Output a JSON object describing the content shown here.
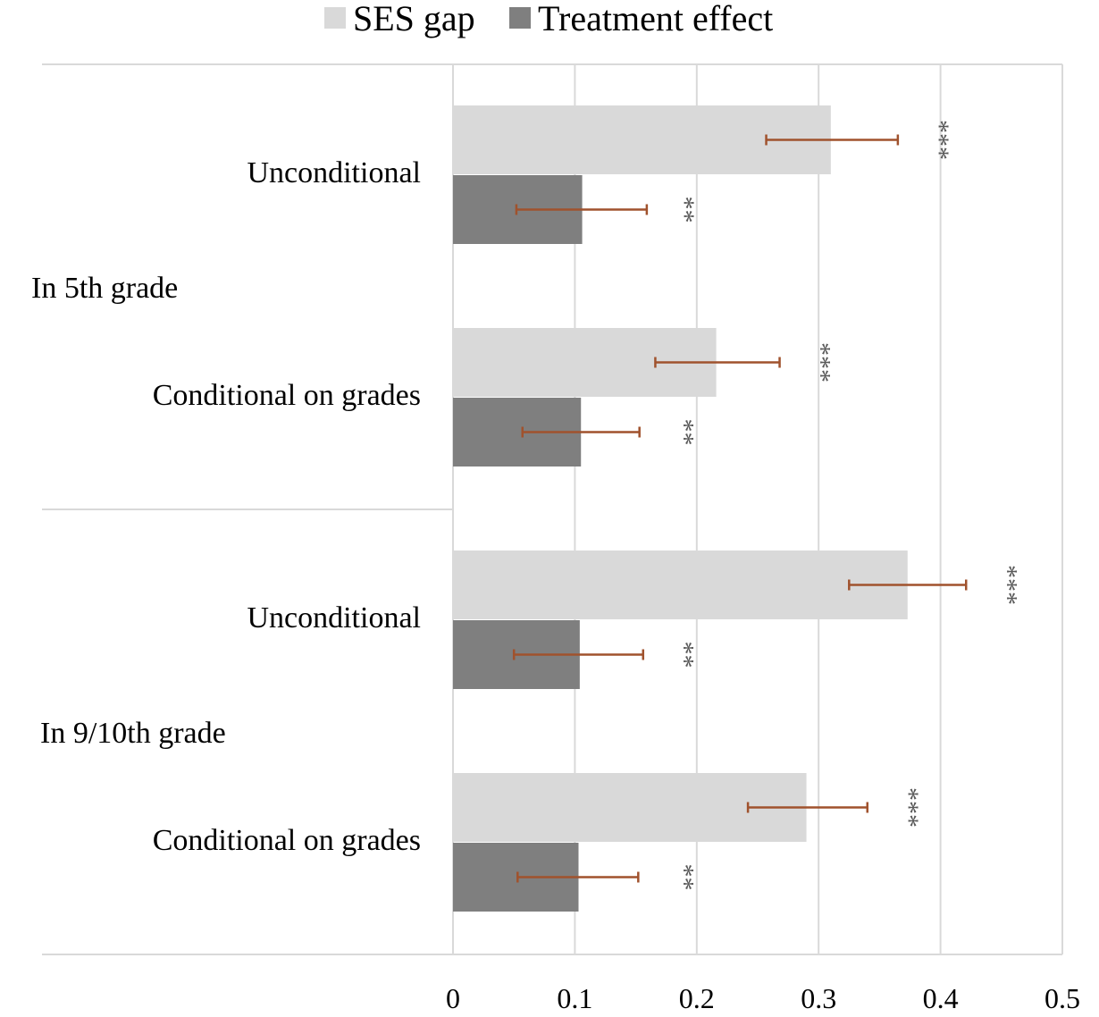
{
  "colors": {
    "ses_gap": "#d9d9d9",
    "treatment_effect": "#7f7f7f",
    "error_bar": "#a0522d",
    "grid": "#d9d9d9",
    "text": "#000000",
    "stars": "#595959"
  },
  "chart_data": {
    "type": "bar",
    "orientation": "horizontal",
    "title": "",
    "xlabel": "",
    "ylabel": "",
    "xlim": [
      0,
      0.5
    ],
    "x_ticks": [
      0,
      0.1,
      0.2,
      0.3,
      0.4,
      0.5
    ],
    "x_tick_labels": [
      "0",
      "0.1",
      "0.2",
      "0.3",
      "0.4",
      "0.5"
    ],
    "grid": true,
    "legend": {
      "position": "top",
      "entries": [
        "SES gap",
        "Treatment effect"
      ]
    },
    "groups": [
      {
        "label": "In 5th grade",
        "categories": [
          {
            "label": "Unconditional",
            "bars": [
              {
                "series": "SES gap",
                "value": 0.31,
                "ci": [
                  0.257,
                  0.365
                ],
                "stars": "***"
              },
              {
                "series": "Treatment effect",
                "value": 0.106,
                "ci": [
                  0.052,
                  0.159
                ],
                "stars": "**"
              }
            ]
          },
          {
            "label": "Conditional on grades",
            "bars": [
              {
                "series": "SES gap",
                "value": 0.216,
                "ci": [
                  0.166,
                  0.268
                ],
                "stars": "***"
              },
              {
                "series": "Treatment effect",
                "value": 0.105,
                "ci": [
                  0.057,
                  0.153
                ],
                "stars": "**"
              }
            ]
          }
        ]
      },
      {
        "label": "In 9/10th grade",
        "categories": [
          {
            "label": "Unconditional",
            "bars": [
              {
                "series": "SES gap",
                "value": 0.373,
                "ci": [
                  0.325,
                  0.421
                ],
                "stars": "***"
              },
              {
                "series": "Treatment effect",
                "value": 0.104,
                "ci": [
                  0.05,
                  0.156
                ],
                "stars": "**"
              }
            ]
          },
          {
            "label": "Conditional on grades",
            "bars": [
              {
                "series": "SES gap",
                "value": 0.29,
                "ci": [
                  0.242,
                  0.34
                ],
                "stars": "***"
              },
              {
                "series": "Treatment effect",
                "value": 0.103,
                "ci": [
                  0.053,
                  0.152
                ],
                "stars": "**"
              }
            ]
          }
        ]
      }
    ]
  }
}
